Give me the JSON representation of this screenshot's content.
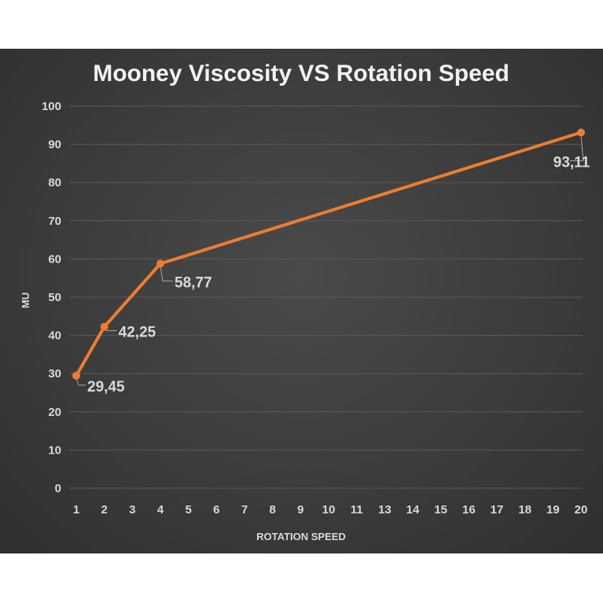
{
  "chart_data": {
    "type": "line",
    "title": "Mooney Viscosity VS Rotation Speed",
    "xlabel": "ROTATION SPEED",
    "ylabel": "MU",
    "x_tick_labels": [
      "1",
      "2",
      "3",
      "4",
      "5",
      "6",
      "7",
      "8",
      "9",
      "10",
      "11",
      "13",
      "14",
      "15",
      "16",
      "17",
      "18",
      "19",
      "20"
    ],
    "y_tick_labels": [
      "0",
      "10",
      "20",
      "30",
      "40",
      "50",
      "60",
      "70",
      "80",
      "90",
      "100"
    ],
    "ylim": [
      0,
      100
    ],
    "grid": true,
    "series": [
      {
        "x": [
          1,
          2,
          4,
          20
        ],
        "values": [
          29.45,
          42.25,
          58.77,
          93.11
        ],
        "labels": [
          "29,45",
          "42,25",
          "58,77",
          "93,11"
        ]
      }
    ],
    "colors": {
      "line": "#ed7d31",
      "background": "#404040",
      "grid": "#595959",
      "text": "#d9d9d9"
    }
  }
}
